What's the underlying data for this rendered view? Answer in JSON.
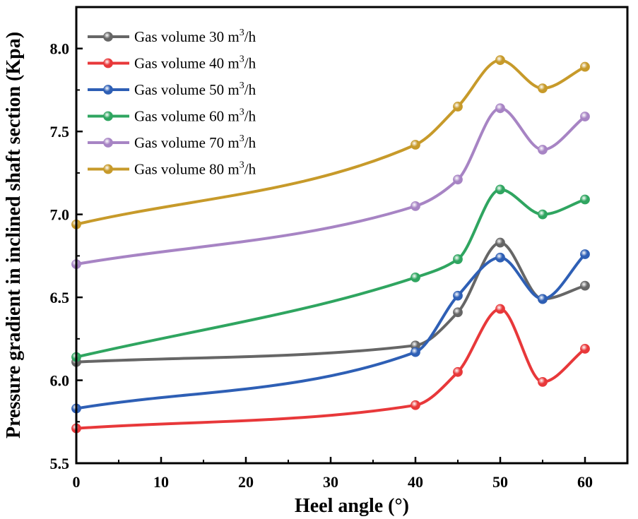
{
  "chart_data": {
    "type": "line",
    "title": "",
    "xlabel": "Heel angle  (°)",
    "ylabel": "Pressure gradient in inclined shaft section (Kpa)",
    "xlim": [
      0,
      65
    ],
    "ylim": [
      5.5,
      8.25
    ],
    "x_ticks": [
      0,
      10,
      20,
      30,
      40,
      50,
      60
    ],
    "y_ticks": [
      5.5,
      6.0,
      6.5,
      7.0,
      7.5,
      8.0
    ],
    "x_tick_labels": [
      "0",
      "10",
      "20",
      "30",
      "40",
      "50",
      "60"
    ],
    "y_tick_labels": [
      "5.5",
      "6.0",
      "6.5",
      "7.0",
      "7.5",
      "8.0"
    ],
    "legend_position": "top-left",
    "grid": false,
    "x": [
      0,
      40,
      45,
      50,
      55,
      60
    ],
    "series": [
      {
        "name": "Gas volume 30 m",
        "unit_sup": "3",
        "unit_tail": "/h",
        "color": "#666666",
        "values": [
          6.11,
          6.21,
          6.41,
          6.83,
          6.49,
          6.57
        ]
      },
      {
        "name": "Gas volume 40 m",
        "unit_sup": "3",
        "unit_tail": "/h",
        "color": "#e8383a",
        "values": [
          5.71,
          5.85,
          6.05,
          6.43,
          5.99,
          6.19
        ]
      },
      {
        "name": "Gas volume 50 m",
        "unit_sup": "3",
        "unit_tail": "/h",
        "color": "#2e5fb5",
        "values": [
          5.83,
          6.17,
          6.51,
          6.74,
          6.49,
          6.76
        ]
      },
      {
        "name": "Gas volume 60 m",
        "unit_sup": "3",
        "unit_tail": "/h",
        "color": "#2fa560",
        "values": [
          6.14,
          6.62,
          6.73,
          7.15,
          7.0,
          7.09
        ]
      },
      {
        "name": "Gas volume 70 m",
        "unit_sup": "3",
        "unit_tail": "/h",
        "color": "#a784c4",
        "values": [
          6.7,
          7.05,
          7.21,
          7.64,
          7.39,
          7.59
        ]
      },
      {
        "name": "Gas volume 80 m",
        "unit_sup": "3",
        "unit_tail": "/h",
        "color": "#c79a2a",
        "values": [
          6.94,
          7.42,
          7.65,
          7.93,
          7.76,
          7.89
        ]
      }
    ]
  }
}
